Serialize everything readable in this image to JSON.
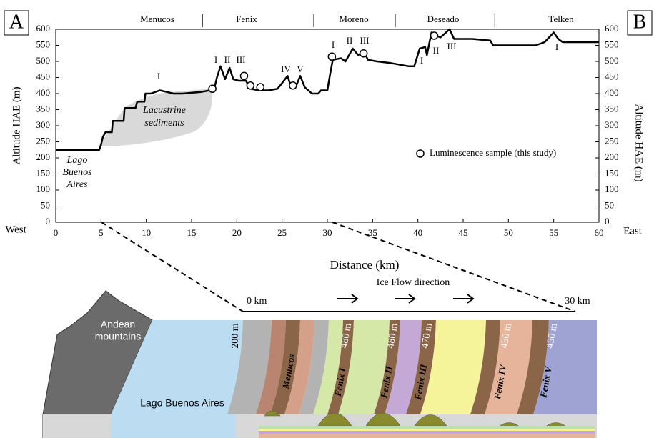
{
  "chart_data": {
    "type": "line",
    "xlabel": "Distance (km)",
    "ylabel": "Altitude HAE (m)",
    "y2label": "Altitude HAE (m)",
    "west_label": "West",
    "east_label": "East",
    "panel_left": "A",
    "panel_right": "B",
    "xlim": [
      0,
      60
    ],
    "xticks": [
      0,
      5,
      10,
      15,
      20,
      25,
      30,
      35,
      40,
      45,
      50,
      55,
      60
    ],
    "ylim": [
      0,
      600
    ],
    "yticks": [
      0,
      50,
      100,
      150,
      200,
      250,
      300,
      350,
      400,
      450,
      500,
      550,
      600
    ],
    "y2lim": [
      0,
      600
    ],
    "y2ticks": [
      0,
      50,
      100,
      150,
      200,
      250,
      300,
      350,
      400,
      450,
      500,
      550,
      600
    ],
    "zones": [
      "Menucos",
      "Fenix",
      "Moreno",
      "Deseado",
      "Telken"
    ],
    "zone_boundaries": [
      16.2,
      28.5,
      37.5,
      48.5
    ],
    "series": [
      {
        "color": "#000000",
        "x": [
          0,
          4.8,
          5,
          5.2,
          5.5,
          6.2,
          6.3,
          7.5,
          7.6,
          8.8,
          9,
          9.8,
          9.9,
          10.5,
          11.5,
          12.3,
          13,
          14,
          16,
          17,
          17.5,
          17.8,
          18.2,
          18.7,
          19.2,
          19.6,
          20.2,
          21,
          21.5,
          22.5,
          23.5,
          24.5,
          25.2,
          25.6,
          26,
          26.5,
          27,
          27.5,
          28.3,
          29,
          29.3,
          30,
          30.3,
          30.6,
          31.5,
          32,
          32.8,
          33.4,
          34,
          34.5,
          35.5,
          37,
          39,
          39.6,
          40.2,
          40.8,
          41,
          41.5,
          42,
          42.5,
          43.5,
          44,
          46,
          48,
          48.3,
          50,
          53,
          54,
          55,
          55.5,
          56,
          60
        ],
        "values": [
          225,
          225,
          240,
          265,
          280,
          280,
          315,
          315,
          355,
          355,
          375,
          375,
          400,
          400,
          410,
          405,
          400,
          400,
          405,
          410,
          415,
          450,
          485,
          445,
          480,
          445,
          440,
          440,
          415,
          410,
          410,
          415,
          440,
          455,
          420,
          420,
          455,
          420,
          400,
          400,
          410,
          410,
          460,
          505,
          510,
          500,
          540,
          520,
          530,
          505,
          500,
          495,
          485,
          485,
          540,
          545,
          520,
          590,
          580,
          575,
          600,
          570,
          570,
          565,
          550,
          550,
          550,
          560,
          590,
          570,
          560,
          560
        ]
      },
      {
        "name": "Luminescence sample (this study)",
        "marker": "circle",
        "color": "#000000",
        "x": [
          17.3,
          20.8,
          21.5,
          22.6,
          26.2,
          30.5,
          34,
          41.8
        ],
        "values": [
          415,
          455,
          425,
          420,
          425,
          515,
          525,
          580
        ]
      }
    ],
    "peak_labels": [
      "I",
      "I",
      "II",
      "III",
      "IV",
      "V",
      "I",
      "II",
      "III",
      "I",
      "II",
      "III",
      "I"
    ],
    "lake_label": [
      "Lago",
      "Buenos",
      "Aires"
    ],
    "sediment_label": [
      "Lacustrine",
      "sediments"
    ]
  },
  "diagram": {
    "mountains": [
      "Andean",
      "mountains"
    ],
    "lake": "Lago Buenos Aires",
    "height": "200 m",
    "scale_start": "0 km",
    "scale_end": "30 km",
    "flow": "Ice Flow direction",
    "menucos": "Menucos",
    "moraines": [
      {
        "name": "Fenix I",
        "altitude": "480 m"
      },
      {
        "name": "Fenix II",
        "altitude": "480 m"
      },
      {
        "name": "Fenix III",
        "altitude": "470 m"
      },
      {
        "name": "Fenix IV",
        "altitude": "450 m"
      },
      {
        "name": "Fenix V",
        "altitude": "450 m"
      }
    ]
  }
}
